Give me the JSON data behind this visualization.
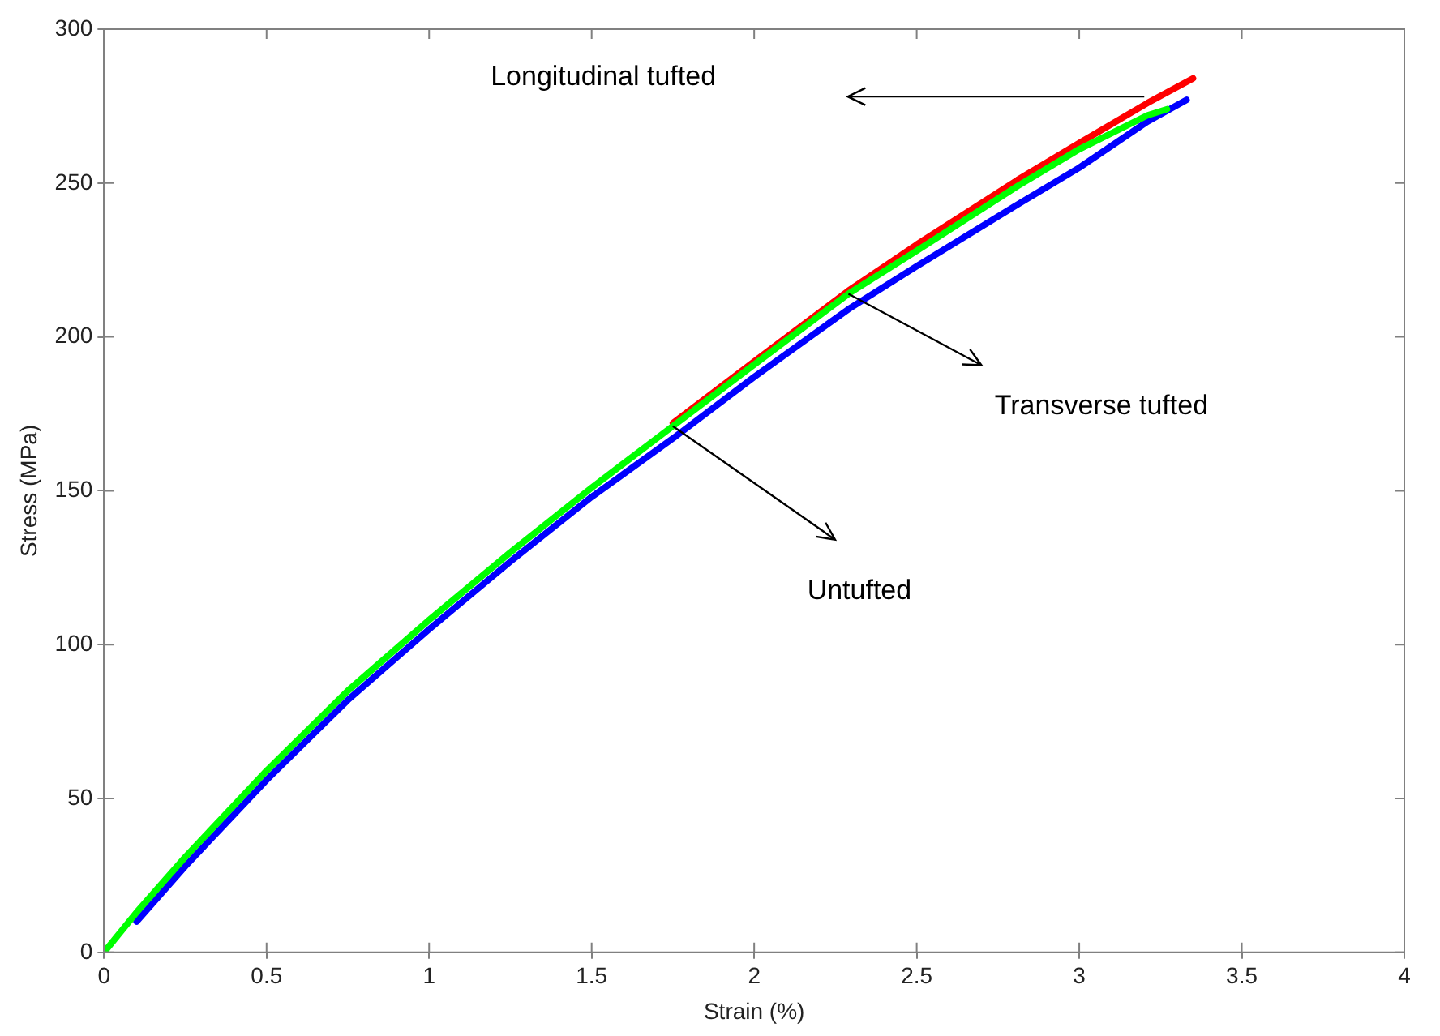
{
  "chart_data": {
    "type": "line",
    "xlabel": "Strain (%)",
    "ylabel": "Stress (MPa)",
    "xlim": [
      0,
      4
    ],
    "ylim": [
      0,
      300
    ],
    "xticks": [
      0,
      0.5,
      1,
      1.5,
      2,
      2.5,
      3,
      3.5,
      4
    ],
    "yticks": [
      0,
      50,
      100,
      150,
      200,
      250,
      300
    ],
    "grid": false,
    "legend": false,
    "marker": "none",
    "line_style": "solid",
    "series": [
      {
        "color": "#ff0000",
        "x": [
          1.75,
          2,
          2.29,
          2.5,
          2.81,
          3,
          3.21,
          3.35
        ],
        "values": [
          172,
          192,
          215,
          230,
          251,
          263,
          276,
          284
        ]
      },
      {
        "color": "#0000ff",
        "x": [
          0.1,
          0.25,
          0.5,
          0.75,
          1,
          1.25,
          1.5,
          1.75,
          2,
          2.29,
          2.5,
          2.81,
          3,
          3.21,
          3.33
        ],
        "values": [
          10,
          28,
          56,
          82,
          105,
          127,
          148,
          167,
          187,
          209,
          223,
          243,
          255,
          270,
          277
        ]
      },
      {
        "color": "#00ff00",
        "x": [
          0,
          0.1,
          0.25,
          0.5,
          0.75,
          1,
          1.25,
          1.5,
          1.75,
          2,
          2.29,
          2.5,
          2.81,
          3,
          3.21,
          3.27
        ],
        "values": [
          0,
          13,
          31,
          59,
          85,
          108,
          130,
          151,
          171,
          191,
          214,
          228,
          249,
          261,
          272,
          274
        ]
      }
    ],
    "annotations": [
      "Longitudinal tufted",
      {
        "text": "Transverse tufted",
        "x": 2.29,
        "y": 214
      },
      {
        "text": "Untufted",
        "x": 1.75,
        "y": 171
      }
    ]
  }
}
